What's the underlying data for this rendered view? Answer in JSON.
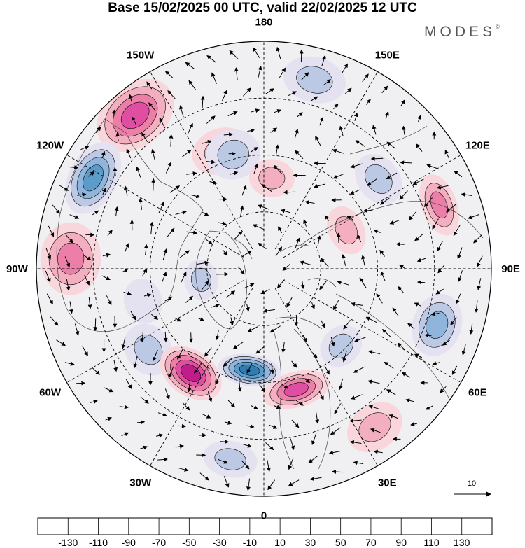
{
  "title": "Base 15/02/2025 00 UTC, valid 22/02/2025 12 UTC",
  "brand": "MODES",
  "brand_mark": "©",
  "longitude_labels": [
    {
      "text": "180",
      "lon": 180
    },
    {
      "text": "150E",
      "lon": 150
    },
    {
      "text": "120E",
      "lon": 120
    },
    {
      "text": "90E",
      "lon": 90
    },
    {
      "text": "60E",
      "lon": 60
    },
    {
      "text": "30E",
      "lon": 30
    },
    {
      "text": "0",
      "lon": 0
    },
    {
      "text": "30W",
      "lon": -30
    },
    {
      "text": "60W",
      "lon": -60
    },
    {
      "text": "90W",
      "lon": -90
    },
    {
      "text": "120W",
      "lon": -120
    },
    {
      "text": "150W",
      "lon": -150
    }
  ],
  "vector_reference": {
    "label": "10"
  },
  "colorbar": {
    "ticks": [
      "-130",
      "-110",
      "-90",
      "-70",
      "-50",
      "-30",
      "-10",
      "10",
      "30",
      "50",
      "70",
      "90",
      "110",
      "130"
    ],
    "colors": [
      "#1b3f63",
      "#1d5f8e",
      "#2e7db3",
      "#5c9ccb",
      "#8fb5dc",
      "#bcc9e4",
      "#e4e2f0",
      "#ffffff",
      "#f9d6dc",
      "#f3aebf",
      "#ec7fa8",
      "#df4ea0",
      "#c01d8b",
      "#9a0f7e",
      "#6a0f70"
    ]
  },
  "anomalies": [
    {
      "lon": -140,
      "r": 0.88,
      "value": 75,
      "size": 0.19,
      "stretch": 1.4
    },
    {
      "lon": -118,
      "r": 0.85,
      "value": -75,
      "size": 0.17,
      "stretch": 1.6
    },
    {
      "lon": -160,
      "r": 0.55,
      "value": 35,
      "size": 0.13,
      "stretch": 1.3
    },
    {
      "lon": 165,
      "r": 0.86,
      "value": -45,
      "size": 0.14,
      "stretch": 1.4
    },
    {
      "lon": -165,
      "r": 0.52,
      "value": -30,
      "size": 0.12,
      "stretch": 1.1
    },
    {
      "lon": 175,
      "r": 0.4,
      "value": 30,
      "size": 0.1,
      "stretch": 1.2
    },
    {
      "lon": 128,
      "r": 0.64,
      "value": -30,
      "size": 0.12,
      "stretch": 1.3
    },
    {
      "lon": 110,
      "r": 0.82,
      "value": 55,
      "size": 0.14,
      "stretch": 1.8
    },
    {
      "lon": 115,
      "r": 0.4,
      "value": 30,
      "size": 0.11,
      "stretch": 1.4
    },
    {
      "lon": -93,
      "r": 0.85,
      "value": 55,
      "size": 0.16,
      "stretch": 1.2
    },
    {
      "lon": -55,
      "r": 0.62,
      "value": -35,
      "size": 0.12,
      "stretch": 1.2
    },
    {
      "lon": -35,
      "r": 0.56,
      "value": 95,
      "size": 0.15,
      "stretch": 1.5
    },
    {
      "lon": -8,
      "r": 0.45,
      "value": -105,
      "size": 0.14,
      "stretch": 2.0
    },
    {
      "lon": 15,
      "r": 0.55,
      "value": 75,
      "size": 0.15,
      "stretch": 1.9
    },
    {
      "lon": 45,
      "r": 0.48,
      "value": -45,
      "size": 0.1,
      "stretch": 1.2
    },
    {
      "lon": 72,
      "r": 0.8,
      "value": -55,
      "size": 0.14,
      "stretch": 1.3
    },
    {
      "lon": -80,
      "r": 0.28,
      "value": -30,
      "size": 0.09,
      "stretch": 1.2
    },
    {
      "lon": -10,
      "r": 0.85,
      "value": -35,
      "size": 0.12,
      "stretch": 1.5
    },
    {
      "lon": 35,
      "r": 0.85,
      "value": 30,
      "size": 0.13,
      "stretch": 1.3
    },
    {
      "lon": -75,
      "r": 0.55,
      "value": -15,
      "size": 0.1,
      "stretch": 1.2
    }
  ]
}
